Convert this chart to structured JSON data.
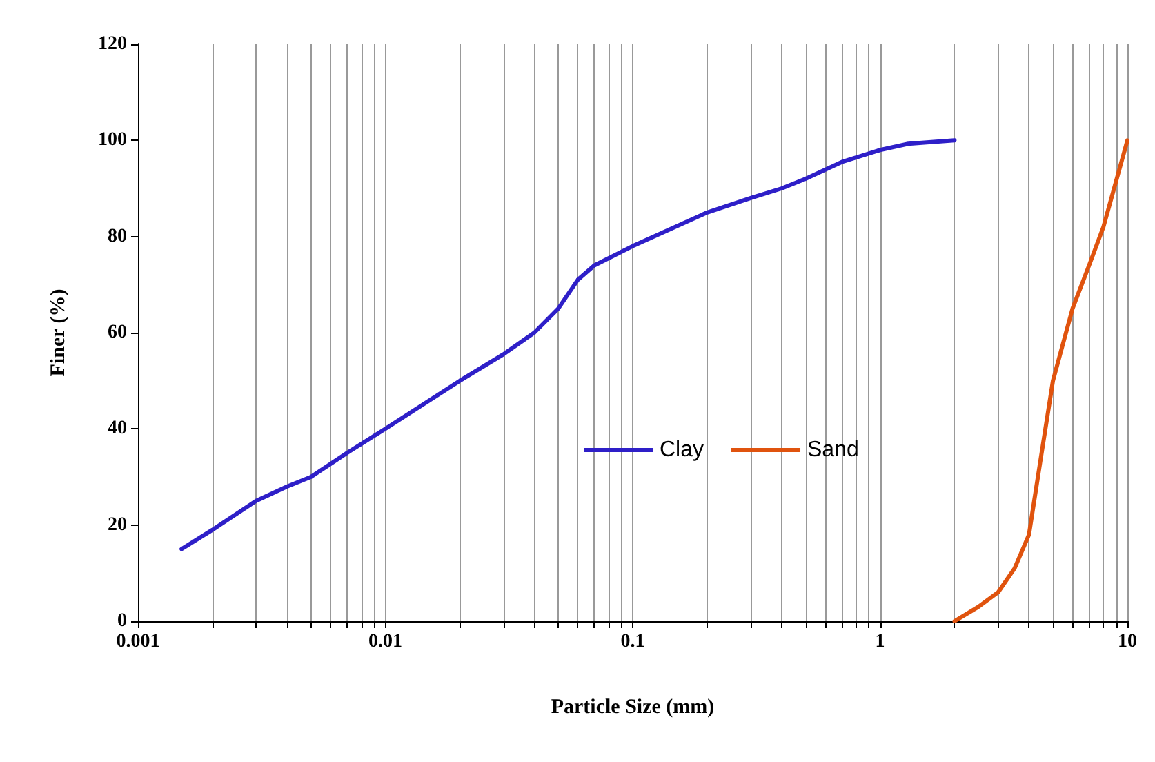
{
  "chart_data": {
    "type": "line",
    "xlabel": "Particle Size (mm)",
    "ylabel": "Finer (%)",
    "log": "x",
    "xlim": [
      0.001,
      10
    ],
    "ylim": [
      0,
      120
    ],
    "yticks": [
      0,
      20,
      40,
      60,
      80,
      100,
      120
    ],
    "xticks": [
      0.001,
      {
        "value": 0.002,
        "label": null
      },
      {
        "value": 0.003,
        "label": null
      },
      {
        "value": 0.004,
        "label": null
      },
      {
        "value": 0.005,
        "label": null
      },
      {
        "value": 0.006,
        "label": null
      },
      {
        "value": 0.007,
        "label": null
      },
      {
        "value": 0.008,
        "label": null
      },
      {
        "value": 0.009,
        "label": null
      },
      0.01,
      {
        "value": 0.02,
        "label": null
      },
      {
        "value": 0.03,
        "label": null
      },
      {
        "value": 0.04,
        "label": null
      },
      {
        "value": 0.05,
        "label": null
      },
      {
        "value": 0.06,
        "label": null
      },
      {
        "value": 0.07,
        "label": null
      },
      {
        "value": 0.08,
        "label": null
      },
      {
        "value": 0.09,
        "label": null
      },
      0.1,
      {
        "value": 0.2,
        "label": null
      },
      {
        "value": 0.3,
        "label": null
      },
      {
        "value": 0.4,
        "label": null
      },
      {
        "value": 0.5,
        "label": null
      },
      {
        "value": 0.6,
        "label": null
      },
      {
        "value": 0.7,
        "label": null
      },
      {
        "value": 0.8,
        "label": null
      },
      {
        "value": 0.9,
        "label": null
      },
      1,
      {
        "value": 2,
        "label": null
      },
      {
        "value": 3,
        "label": null
      },
      {
        "value": 4,
        "label": null
      },
      {
        "value": 5,
        "label": null
      },
      {
        "value": 6,
        "label": null
      },
      {
        "value": 7,
        "label": null
      },
      {
        "value": 8,
        "label": null
      },
      {
        "value": 9,
        "label": null
      },
      10
    ],
    "grid": "x",
    "legend": "center",
    "marker": "none",
    "line_style": "solid",
    "series": [
      {
        "name": "Clay",
        "color": "#2e1fc8",
        "x": [
          0.0015,
          0.002,
          0.003,
          0.004,
          0.005,
          0.007,
          0.01,
          0.02,
          0.03,
          0.04,
          0.05,
          0.06,
          0.07,
          0.1,
          0.2,
          0.3,
          0.4,
          0.5,
          0.7,
          1,
          1.3,
          2
        ],
        "values": [
          15,
          19,
          25,
          28,
          30,
          35,
          40,
          50,
          55.5,
          60,
          65,
          71,
          74,
          78,
          85,
          88,
          90,
          92,
          95.5,
          98,
          99.3,
          100
        ]
      },
      {
        "name": "Sand",
        "color": "#e0530e",
        "x": [
          2,
          2.5,
          3,
          3.5,
          4,
          4.5,
          5,
          6,
          7,
          8,
          10
        ],
        "values": [
          0,
          3,
          6,
          11,
          18,
          35,
          50,
          65,
          74,
          82,
          100
        ]
      }
    ]
  }
}
